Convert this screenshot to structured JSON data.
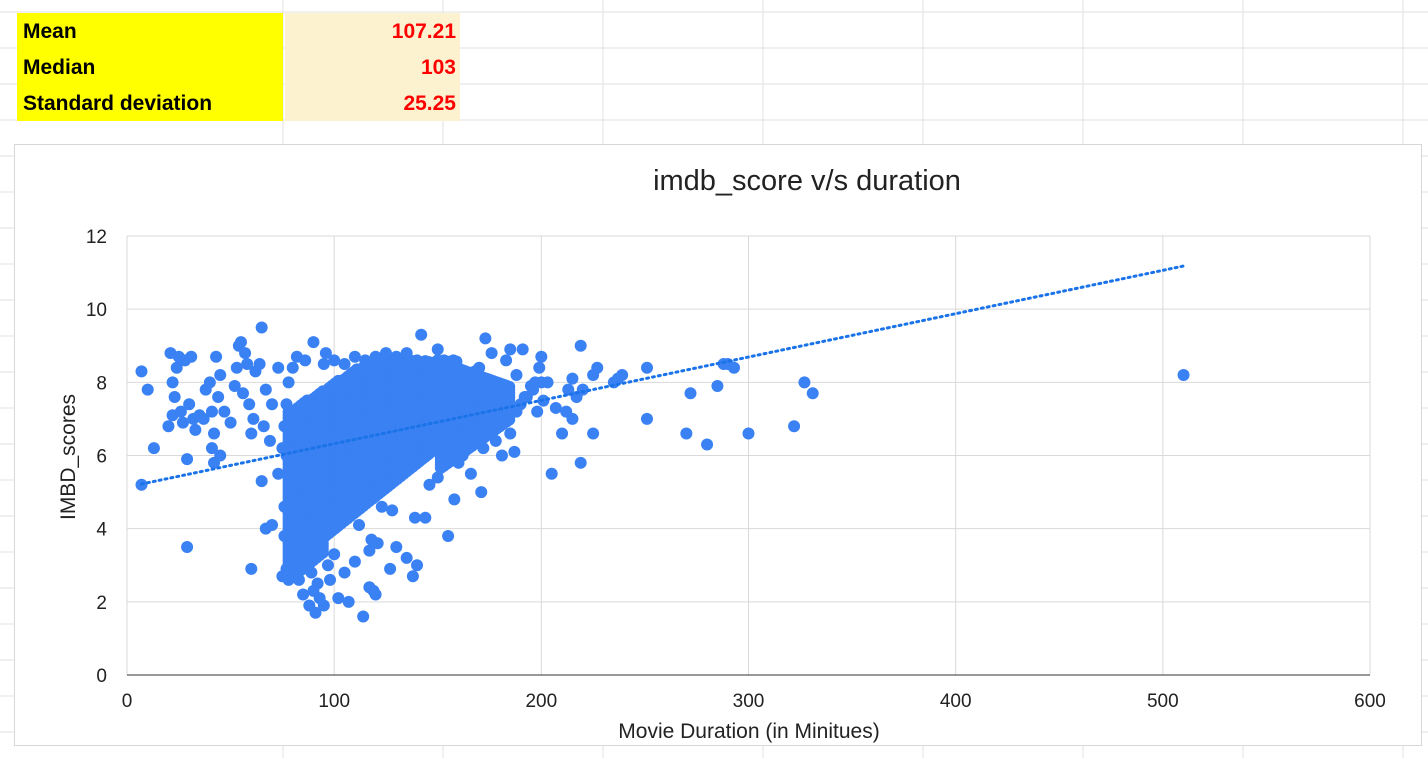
{
  "stats": {
    "rows": [
      {
        "label": "Mean",
        "value": "107.21"
      },
      {
        "label": "Median",
        "value": "103"
      },
      {
        "label": "Standard deviation",
        "value": "25.25"
      }
    ]
  },
  "chart_data": {
    "type": "scatter",
    "title": "imdb_score v/s duration",
    "xlabel": "Movie Duration (in Minitues)",
    "ylabel": "IMBD_scores",
    "xlim": [
      0,
      600
    ],
    "ylim": [
      0,
      12
    ],
    "x_ticks": [
      "0",
      "100",
      "200",
      "300",
      "400",
      "500",
      "600"
    ],
    "y_ticks": [
      "0",
      "2",
      "4",
      "6",
      "8",
      "10",
      "12"
    ],
    "grid": true,
    "legend": "none",
    "colors": {
      "points": "#3a81f3",
      "trendline": "#1a73e8"
    },
    "trendline": {
      "type": "linear",
      "style": "dotted",
      "x": [
        7,
        510
      ],
      "y": [
        5.22,
        11.18
      ]
    },
    "series": [
      {
        "points": [
          [
            7,
            8.3
          ],
          [
            7,
            5.2
          ],
          [
            10,
            7.8
          ],
          [
            13,
            6.2
          ],
          [
            20,
            6.8
          ],
          [
            21,
            8.8
          ],
          [
            22,
            8.0
          ],
          [
            22,
            7.1
          ],
          [
            23,
            7.6
          ],
          [
            24,
            8.4
          ],
          [
            25,
            8.7
          ],
          [
            26,
            7.2
          ],
          [
            27,
            6.9
          ],
          [
            28,
            8.6
          ],
          [
            29,
            5.9
          ],
          [
            29,
            3.5
          ],
          [
            30,
            7.4
          ],
          [
            31,
            8.7
          ],
          [
            32,
            7.0
          ],
          [
            33,
            6.7
          ],
          [
            35,
            7.1
          ],
          [
            37,
            7.0
          ],
          [
            38,
            7.8
          ],
          [
            40,
            8.0
          ],
          [
            41,
            6.2
          ],
          [
            41,
            7.2
          ],
          [
            42,
            6.6
          ],
          [
            42,
            5.8
          ],
          [
            43,
            8.7
          ],
          [
            44,
            7.6
          ],
          [
            45,
            6.0
          ],
          [
            45,
            8.2
          ],
          [
            47,
            7.2
          ],
          [
            50,
            6.9
          ],
          [
            52,
            7.9
          ],
          [
            53,
            8.4
          ],
          [
            54,
            9.0
          ],
          [
            55,
            9.1
          ],
          [
            56,
            7.7
          ],
          [
            57,
            8.8
          ],
          [
            58,
            8.5
          ],
          [
            59,
            7.4
          ],
          [
            60,
            6.6
          ],
          [
            60,
            2.9
          ],
          [
            61,
            7.0
          ],
          [
            62,
            8.3
          ],
          [
            64,
            8.5
          ],
          [
            65,
            9.5
          ],
          [
            65,
            5.3
          ],
          [
            66,
            6.8
          ],
          [
            67,
            4.0
          ],
          [
            67,
            7.8
          ],
          [
            69,
            6.4
          ],
          [
            70,
            4.1
          ],
          [
            70,
            7.4
          ],
          [
            73,
            8.4
          ],
          [
            73,
            5.5
          ],
          [
            75,
            2.7
          ],
          [
            75,
            6.2
          ],
          [
            76,
            3.8
          ],
          [
            76,
            4.6
          ],
          [
            77,
            2.9
          ],
          [
            78,
            2.7
          ],
          [
            79,
            6.8
          ],
          [
            80,
            2.8
          ],
          [
            80,
            4.9
          ],
          [
            82,
            8.7
          ],
          [
            83,
            2.6
          ],
          [
            84,
            3.2
          ],
          [
            85,
            2.2
          ],
          [
            86,
            8.6
          ],
          [
            87,
            3.7
          ],
          [
            88,
            1.9
          ],
          [
            89,
            2.8
          ],
          [
            90,
            9.1
          ],
          [
            90,
            2.3
          ],
          [
            91,
            1.7
          ],
          [
            92,
            2.5
          ],
          [
            93,
            2.1
          ],
          [
            95,
            1.9
          ],
          [
            96,
            8.8
          ],
          [
            97,
            3.0
          ],
          [
            98,
            2.6
          ],
          [
            100,
            3.3
          ],
          [
            102,
            2.1
          ],
          [
            105,
            2.8
          ],
          [
            107,
            2.0
          ],
          [
            110,
            3.1
          ],
          [
            112,
            4.1
          ],
          [
            114,
            1.6
          ],
          [
            117,
            2.4
          ],
          [
            117,
            3.4
          ],
          [
            118,
            3.7
          ],
          [
            119,
            2.3
          ],
          [
            120,
            2.2
          ],
          [
            121,
            3.6
          ],
          [
            123,
            4.6
          ],
          [
            127,
            2.9
          ],
          [
            128,
            4.5
          ],
          [
            130,
            3.5
          ],
          [
            135,
            3.2
          ],
          [
            138,
            2.7
          ],
          [
            139,
            4.3
          ],
          [
            140,
            3.0
          ],
          [
            142,
            9.3
          ],
          [
            144,
            4.3
          ],
          [
            146,
            5.2
          ],
          [
            150,
            8.9
          ],
          [
            150,
            5.4
          ],
          [
            153,
            7.6
          ],
          [
            155,
            3.8
          ],
          [
            158,
            4.8
          ],
          [
            160,
            5.8
          ],
          [
            162,
            6.0
          ],
          [
            164,
            7.4
          ],
          [
            166,
            5.5
          ],
          [
            168,
            6.7
          ],
          [
            170,
            8.4
          ],
          [
            171,
            5.0
          ],
          [
            172,
            6.2
          ],
          [
            173,
            9.2
          ],
          [
            175,
            7.0
          ],
          [
            176,
            8.8
          ],
          [
            178,
            6.4
          ],
          [
            180,
            7.2
          ],
          [
            181,
            6.0
          ],
          [
            183,
            8.6
          ],
          [
            185,
            6.6
          ],
          [
            185,
            8.9
          ],
          [
            187,
            6.1
          ],
          [
            188,
            8.2
          ],
          [
            190,
            7.4
          ],
          [
            191,
            8.9
          ],
          [
            193,
            7.6
          ],
          [
            195,
            7.9
          ],
          [
            197,
            8.0
          ],
          [
            198,
            7.2
          ],
          [
            199,
            8.4
          ],
          [
            200,
            8.7
          ],
          [
            201,
            7.5
          ],
          [
            203,
            8.0
          ],
          [
            205,
            5.5
          ],
          [
            207,
            7.3
          ],
          [
            210,
            6.6
          ],
          [
            212,
            7.2
          ],
          [
            213,
            7.8
          ],
          [
            215,
            7.0
          ],
          [
            215,
            8.1
          ],
          [
            217,
            7.6
          ],
          [
            219,
            5.8
          ],
          [
            219,
            9.0
          ],
          [
            220,
            7.8
          ],
          [
            225,
            6.6
          ],
          [
            225,
            8.2
          ],
          [
            227,
            8.4
          ],
          [
            235,
            8.0
          ],
          [
            237,
            8.1
          ],
          [
            239,
            8.2
          ],
          [
            251,
            7.0
          ],
          [
            251,
            8.4
          ],
          [
            270,
            6.6
          ],
          [
            272,
            7.7
          ],
          [
            280,
            6.3
          ],
          [
            285,
            7.9
          ],
          [
            288,
            8.5
          ],
          [
            290,
            8.5
          ],
          [
            293,
            8.4
          ],
          [
            300,
            6.6
          ],
          [
            322,
            6.8
          ],
          [
            327,
            8.0
          ],
          [
            331,
            7.7
          ],
          [
            510,
            8.2
          ],
          [
            85,
            3.6
          ],
          [
            88,
            4.0
          ],
          [
            92,
            4.2
          ],
          [
            96,
            4.6
          ],
          [
            100,
            4.4
          ],
          [
            104,
            4.8
          ],
          [
            108,
            5.0
          ],
          [
            112,
            5.2
          ],
          [
            116,
            5.5
          ],
          [
            120,
            5.8
          ],
          [
            124,
            6.1
          ],
          [
            128,
            6.4
          ],
          [
            132,
            6.6
          ],
          [
            136,
            6.9
          ],
          [
            140,
            7.1
          ],
          [
            144,
            7.3
          ],
          [
            148,
            7.6
          ],
          [
            152,
            7.8
          ],
          [
            156,
            8.0
          ],
          [
            160,
            8.1
          ],
          [
            164,
            8.2
          ],
          [
            168,
            8.3
          ],
          [
            172,
            8.0
          ],
          [
            176,
            7.8
          ],
          [
            180,
            7.6
          ],
          [
            184,
            7.4
          ],
          [
            188,
            7.2
          ],
          [
            192,
            7.6
          ],
          [
            196,
            7.8
          ],
          [
            200,
            8.0
          ],
          [
            95,
            8.5
          ],
          [
            100,
            8.6
          ],
          [
            105,
            8.5
          ],
          [
            110,
            8.7
          ],
          [
            115,
            8.6
          ],
          [
            120,
            8.7
          ],
          [
            125,
            8.8
          ],
          [
            130,
            8.7
          ],
          [
            135,
            8.8
          ],
          [
            140,
            8.6
          ],
          [
            145,
            8.5
          ],
          [
            150,
            8.6
          ],
          [
            155,
            8.4
          ],
          [
            80,
            8.4
          ],
          [
            78,
            8.0
          ],
          [
            77,
            7.4
          ],
          [
            76,
            6.8
          ],
          [
            77,
            6.0
          ],
          [
            78,
            5.4
          ],
          [
            79,
            5.0
          ],
          [
            110,
            5.9
          ],
          [
            115,
            6.3
          ],
          [
            118,
            5.7
          ],
          [
            122,
            6.5
          ],
          [
            126,
            6.9
          ],
          [
            130,
            7.2
          ],
          [
            134,
            7.5
          ],
          [
            138,
            7.7
          ],
          [
            142,
            7.9
          ],
          [
            146,
            8.1
          ]
        ]
      }
    ]
  }
}
